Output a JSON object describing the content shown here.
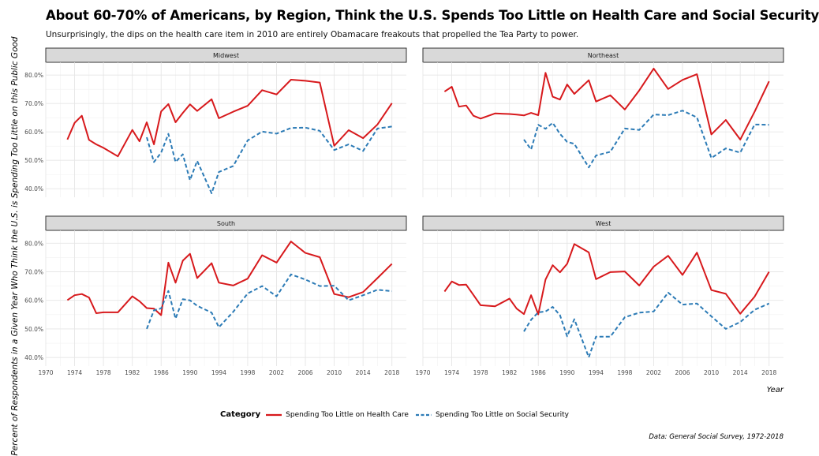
{
  "chart_data": {
    "type": "line",
    "title": "About 60-70% of Americans, by Region, Think the U.S. Spends Too Little on Health Care and Social Security",
    "subtitle": "Unsurprisingly, the dips on the health care item in 2010 are entirely Obamacare freakouts that propelled the Tea Party to power.",
    "xlabel": "Year",
    "ylabel": "Percent of Respondents in a Given Year Who Think the U.S. is Spending Too Little on this Public Good",
    "caption": "Data: General Social Survey, 1972-2018",
    "legend_title": "Category",
    "legend_position": "bottom",
    "xlim": [
      1970,
      2020
    ],
    "ylim": [
      0.37,
      0.845
    ],
    "x_ticks": [
      1970,
      1974,
      1978,
      1982,
      1986,
      1990,
      1994,
      1998,
      2002,
      2006,
      2010,
      2014,
      2018
    ],
    "y_ticks": [
      0.4,
      0.5,
      0.6,
      0.7,
      0.8
    ],
    "y_tick_labels": [
      "40.0%",
      "50.0%",
      "60.0%",
      "70.0%",
      "80.0%"
    ],
    "grid": true,
    "colors": {
      "health": "#d7191c",
      "social": "#2c7bb6"
    },
    "series_names": [
      "Spending Too Little on Health Care",
      "Spending Too Little on Social Security"
    ],
    "panels": [
      {
        "name": "Midwest",
        "series": [
          {
            "name": "Spending Too Little on Health Care",
            "x": [
              1973,
              1974,
              1975,
              1976,
              1977,
              1978,
              1980,
              1982,
              1983,
              1984,
              1985,
              1986,
              1987,
              1988,
              1989,
              1990,
              1991,
              1993,
              1994,
              1996,
              1998,
              2000,
              2002,
              2004,
              2006,
              2008,
              2010,
              2012,
              2014,
              2016,
              2018
            ],
            "y": [
              0.573,
              0.632,
              0.657,
              0.572,
              0.556,
              0.544,
              0.514,
              0.607,
              0.567,
              0.634,
              0.556,
              0.672,
              0.698,
              0.634,
              0.667,
              0.697,
              0.674,
              0.715,
              0.648,
              0.671,
              0.692,
              0.747,
              0.732,
              0.784,
              0.78,
              0.774,
              0.551,
              0.606,
              0.578,
              0.626,
              0.701
            ]
          },
          {
            "name": "Spending Too Little on Social Security",
            "x": [
              1984,
              1985,
              1986,
              1987,
              1988,
              1989,
              1990,
              1991,
              1993,
              1994,
              1996,
              1998,
              2000,
              2002,
              2004,
              2006,
              2008,
              2010,
              2012,
              2014,
              2016,
              2018
            ],
            "y": [
              0.581,
              0.494,
              0.527,
              0.593,
              0.494,
              0.521,
              0.43,
              0.498,
              0.384,
              0.459,
              0.48,
              0.57,
              0.601,
              0.594,
              0.614,
              0.615,
              0.604,
              0.536,
              0.556,
              0.533,
              0.612,
              0.619
            ]
          }
        ]
      },
      {
        "name": "Northeast",
        "series": [
          {
            "name": "Spending Too Little on Health Care",
            "x": [
              1973,
              1974,
              1975,
              1976,
              1977,
              1978,
              1980,
              1982,
              1983,
              1984,
              1985,
              1986,
              1987,
              1988,
              1989,
              1990,
              1991,
              1993,
              1994,
              1996,
              1998,
              2000,
              2002,
              2004,
              2006,
              2008,
              2010,
              2012,
              2014,
              2016,
              2018
            ],
            "y": [
              0.742,
              0.759,
              0.689,
              0.693,
              0.657,
              0.647,
              0.665,
              0.663,
              0.661,
              0.658,
              0.667,
              0.659,
              0.808,
              0.724,
              0.714,
              0.767,
              0.734,
              0.782,
              0.707,
              0.729,
              0.679,
              0.746,
              0.823,
              0.751,
              0.783,
              0.803,
              0.591,
              0.642,
              0.573,
              0.671,
              0.778
            ]
          },
          {
            "name": "Spending Too Little on Social Security",
            "x": [
              1984,
              1985,
              1986,
              1987,
              1988,
              1989,
              1990,
              1991,
              1993,
              1994,
              1996,
              1998,
              2000,
              2002,
              2004,
              2006,
              2008,
              2010,
              2012,
              2014,
              2016,
              2018
            ],
            "y": [
              0.573,
              0.538,
              0.625,
              0.611,
              0.632,
              0.593,
              0.565,
              0.558,
              0.475,
              0.517,
              0.53,
              0.612,
              0.607,
              0.661,
              0.659,
              0.675,
              0.651,
              0.508,
              0.542,
              0.527,
              0.626,
              0.625
            ]
          }
        ]
      },
      {
        "name": "South",
        "series": [
          {
            "name": "Spending Too Little on Health Care",
            "x": [
              1973,
              1974,
              1975,
              1976,
              1977,
              1978,
              1980,
              1982,
              1983,
              1984,
              1985,
              1986,
              1987,
              1988,
              1989,
              1990,
              1991,
              1993,
              1994,
              1996,
              1998,
              2000,
              2002,
              2004,
              2006,
              2008,
              2010,
              2012,
              2014,
              2016,
              2018
            ],
            "y": [
              0.601,
              0.618,
              0.622,
              0.61,
              0.555,
              0.558,
              0.558,
              0.614,
              0.597,
              0.573,
              0.571,
              0.548,
              0.732,
              0.662,
              0.739,
              0.763,
              0.678,
              0.73,
              0.662,
              0.652,
              0.676,
              0.758,
              0.732,
              0.806,
              0.766,
              0.751,
              0.622,
              0.611,
              0.629,
              0.678,
              0.728
            ]
          },
          {
            "name": "Spending Too Little on Social Security",
            "x": [
              1984,
              1985,
              1986,
              1987,
              1988,
              1989,
              1990,
              1991,
              1993,
              1994,
              1996,
              1998,
              2000,
              2002,
              2004,
              2006,
              2008,
              2010,
              2012,
              2014,
              2016,
              2018
            ],
            "y": [
              0.5,
              0.565,
              0.572,
              0.633,
              0.536,
              0.604,
              0.6,
              0.581,
              0.557,
              0.506,
              0.56,
              0.624,
              0.65,
              0.614,
              0.691,
              0.673,
              0.65,
              0.651,
              0.6,
              0.618,
              0.637,
              0.632
            ]
          }
        ]
      },
      {
        "name": "West",
        "series": [
          {
            "name": "Spending Too Little on Health Care",
            "x": [
              1973,
              1974,
              1975,
              1976,
              1977,
              1978,
              1980,
              1982,
              1983,
              1984,
              1985,
              1986,
              1987,
              1988,
              1989,
              1990,
              1991,
              1993,
              1994,
              1996,
              1998,
              2000,
              2002,
              2004,
              2006,
              2008,
              2010,
              2012,
              2014,
              2016,
              2018
            ],
            "y": [
              0.631,
              0.666,
              0.654,
              0.655,
              0.619,
              0.583,
              0.579,
              0.606,
              0.571,
              0.552,
              0.618,
              0.551,
              0.673,
              0.723,
              0.698,
              0.728,
              0.797,
              0.768,
              0.674,
              0.699,
              0.701,
              0.652,
              0.718,
              0.756,
              0.689,
              0.767,
              0.636,
              0.623,
              0.553,
              0.613,
              0.7
            ]
          },
          {
            "name": "Spending Too Little on Social Security",
            "x": [
              1984,
              1985,
              1986,
              1987,
              1988,
              1989,
              1990,
              1991,
              1993,
              1994,
              1996,
              1998,
              2000,
              2002,
              2004,
              2006,
              2008,
              2010,
              2012,
              2014,
              2016,
              2018
            ],
            "y": [
              0.491,
              0.532,
              0.558,
              0.561,
              0.577,
              0.548,
              0.474,
              0.534,
              0.401,
              0.473,
              0.473,
              0.541,
              0.557,
              0.561,
              0.627,
              0.585,
              0.589,
              0.544,
              0.5,
              0.524,
              0.567,
              0.589
            ]
          }
        ]
      }
    ]
  }
}
